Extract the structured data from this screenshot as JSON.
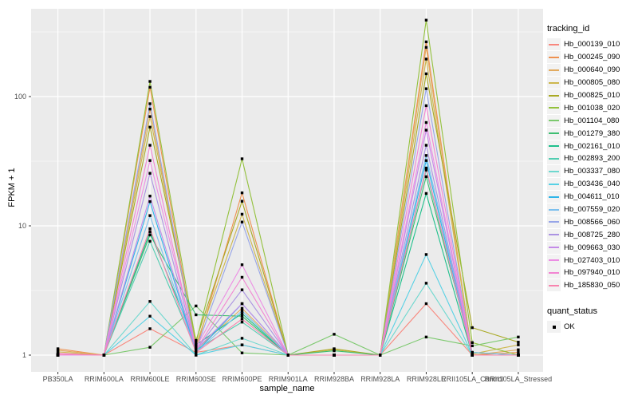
{
  "figure": {
    "xlabel": "sample_name",
    "ylabel": "FPKM + 1",
    "legend_title": "tracking_id",
    "quant_legend_title": "quant_status",
    "quant_ok_label": "OK"
  },
  "colors": {
    "panel_bg": "#EBEBEB",
    "grid": "#FFFFFF",
    "tick_text": "#4D4D4D",
    "axis_title_text": "#000000",
    "point": "#000000",
    "legend_key_bg": "#F2F2F2"
  },
  "chart_data": {
    "type": "line",
    "title": "",
    "xlabel": "sample_name",
    "ylabel": "FPKM + 1",
    "yscale": "log10",
    "yticks": [
      1,
      10,
      100
    ],
    "yminorticks": [
      3.162,
      31.62,
      316.2
    ],
    "ylim": [
      0.79,
      460
    ],
    "grid": true,
    "legend_position": "right",
    "point_shape": "square",
    "point_legend_label": "OK",
    "categories": [
      "PB350LA",
      "RRIM600LA",
      "RRIM600LE",
      "RRIM600SE",
      "RRIM600PE",
      "RRIM901LA",
      "RRIM928BA",
      "RRIM928LA",
      "RRIM928LE",
      "RRII105LA_Control",
      "RRII105LA_Stressed"
    ],
    "series": [
      {
        "name": "Hb_000139_010",
        "color": "#F8877D",
        "values": [
          1.02,
          1,
          1.6,
          1.05,
          1.2,
          1,
          1,
          1,
          2.5,
          1,
          1
        ]
      },
      {
        "name": "Hb_000245_090",
        "color": "#EE9150",
        "values": [
          1.12,
          1,
          118,
          1.1,
          18,
          1,
          1,
          1,
          265,
          1,
          1.05
        ]
      },
      {
        "name": "Hb_000640_090",
        "color": "#E2AB60",
        "values": [
          1.09,
          1,
          80,
          1.1,
          2.3,
          1,
          1,
          1,
          240,
          1,
          1.1
        ]
      },
      {
        "name": "Hb_000805_080",
        "color": "#CDB74E",
        "values": [
          1.06,
          1,
          70,
          1.2,
          12.3,
          1,
          1.1,
          1,
          195,
          1.02,
          1.2
        ]
      },
      {
        "name": "Hb_000825_010",
        "color": "#A9A923",
        "values": [
          1,
          1,
          58,
          1.3,
          15.5,
          1,
          1.12,
          1,
          150,
          1.63,
          1.26
        ]
      },
      {
        "name": "Hb_001038_020",
        "color": "#93C13C",
        "values": [
          1,
          1,
          131,
          1.25,
          33,
          1,
          1,
          1,
          390,
          1.25,
          1
        ]
      },
      {
        "name": "Hb_001104_080",
        "color": "#7CC96E",
        "values": [
          1,
          1,
          1.15,
          2.4,
          1.04,
          1,
          1.45,
          1,
          1.38,
          1.18,
          1.38
        ]
      },
      {
        "name": "Hb_001279_380",
        "color": "#3FBE72",
        "values": [
          1,
          1,
          8.5,
          2.05,
          2.0,
          1,
          1.08,
          1,
          24,
          1.05,
          1
        ]
      },
      {
        "name": "Hb_002161_010",
        "color": "#1FC08C",
        "values": [
          1,
          1,
          9.0,
          1.2,
          2.1,
          1,
          1,
          1,
          17.8,
          1,
          1
        ]
      },
      {
        "name": "Hb_002893_200",
        "color": "#52CDB1",
        "values": [
          1,
          1,
          7.6,
          1.1,
          1.8,
          1,
          1,
          1,
          27,
          1,
          1
        ]
      },
      {
        "name": "Hb_003337_080",
        "color": "#6ED8CF",
        "values": [
          1,
          1,
          2.6,
          1,
          1.35,
          1,
          1,
          1,
          3.6,
          1,
          1
        ]
      },
      {
        "name": "Hb_003436_040",
        "color": "#57D1E5",
        "values": [
          1,
          1,
          2.0,
          1,
          1.2,
          1,
          1,
          1,
          6.0,
          1,
          1
        ]
      },
      {
        "name": "Hb_004611_010",
        "color": "#2FB5E9",
        "values": [
          1,
          1,
          15.4,
          1.05,
          2.5,
          1,
          1,
          1,
          32,
          1,
          1
        ]
      },
      {
        "name": "Hb_007559_020",
        "color": "#7CC0EE",
        "values": [
          1,
          1,
          12,
          1.05,
          2.2,
          1,
          1,
          1,
          35,
          1.05,
          1
        ]
      },
      {
        "name": "Hb_008566_060",
        "color": "#97A5E8",
        "values": [
          1,
          1,
          88,
          1.1,
          10.7,
          1,
          1,
          1,
          115,
          1,
          1
        ]
      },
      {
        "name": "Hb_008725_280",
        "color": "#AB93E2",
        "values": [
          1,
          1,
          25.5,
          1.1,
          3.2,
          1,
          1,
          1,
          42,
          1,
          1
        ]
      },
      {
        "name": "Hb_009663_030",
        "color": "#C48BE8",
        "values": [
          1,
          1,
          17,
          1.1,
          2.5,
          1,
          1,
          1,
          55,
          1,
          1
        ]
      },
      {
        "name": "Hb_027403_010",
        "color": "#EC8EE4",
        "values": [
          1,
          1,
          32,
          1.15,
          5.0,
          1,
          1,
          1,
          63,
          1,
          1
        ]
      },
      {
        "name": "Hb_097940_010",
        "color": "#F285D2",
        "values": [
          1.03,
          1,
          42,
          1.1,
          4.0,
          1,
          1,
          1,
          85,
          1,
          1
        ]
      },
      {
        "name": "Hb_185830_050",
        "color": "#F884AE",
        "values": [
          1.02,
          1,
          9.5,
          1.05,
          1.9,
          1,
          1,
          1,
          28,
          1,
          1
        ]
      }
    ]
  }
}
